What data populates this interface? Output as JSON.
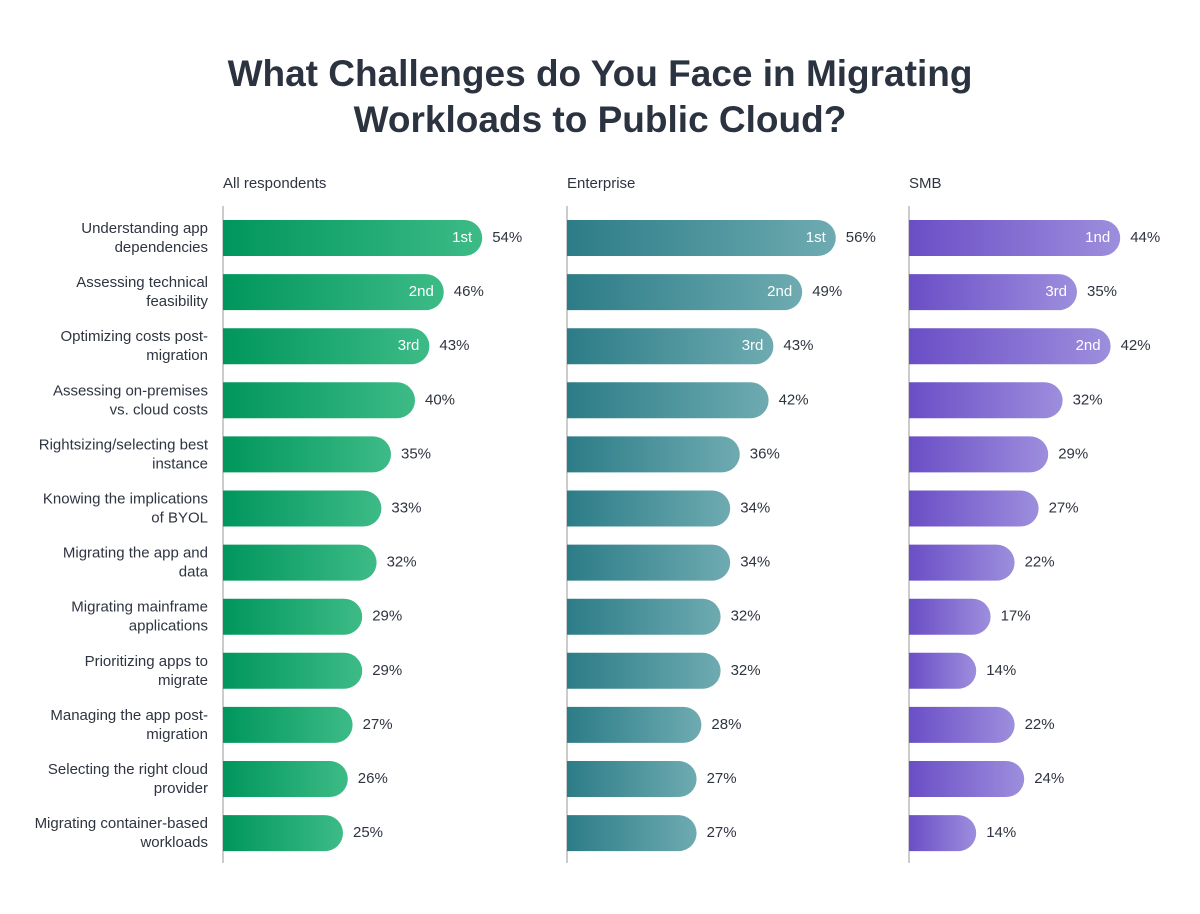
{
  "title": [
    "What Challenges do You Face in Migrating",
    "Workloads to Public Cloud?"
  ],
  "chart_data": [
    {
      "type": "bar",
      "orientation": "horizontal",
      "title": "All respondents",
      "categories": [
        [
          "Understanding app",
          "dependencies"
        ],
        [
          "Assessing technical",
          "feasibility"
        ],
        [
          "Optimizing costs post-",
          "migration"
        ],
        [
          "Assessing on-premises",
          "vs. cloud costs"
        ],
        [
          "Rightsizing/selecting best",
          "instance"
        ],
        [
          "Knowing the implications",
          "of BYOL"
        ],
        [
          "Migrating the app and",
          "data"
        ],
        [
          "Migrating mainframe",
          "applications"
        ],
        [
          "Prioritizing apps to",
          "migrate"
        ],
        [
          "Managing the app post-",
          "migration"
        ],
        [
          "Selecting the right cloud",
          "provider"
        ],
        [
          "Migrating container-based",
          "workloads"
        ]
      ],
      "values": [
        54,
        46,
        43,
        40,
        35,
        33,
        32,
        29,
        29,
        27,
        26,
        25
      ],
      "value_labels": [
        "54%",
        "46%",
        "43%",
        "40%",
        "35%",
        "33%",
        "32%",
        "29%",
        "29%",
        "27%",
        "26%",
        "25%"
      ],
      "rank_labels": [
        "1st",
        "2nd",
        "3rd",
        null,
        null,
        null,
        null,
        null,
        null,
        null,
        null,
        null
      ],
      "color": [
        "#00965c",
        "#3dbb87"
      ]
    },
    {
      "type": "bar",
      "orientation": "horizontal",
      "title": "Enterprise",
      "values": [
        56,
        49,
        43,
        42,
        36,
        34,
        34,
        32,
        32,
        28,
        27,
        27
      ],
      "value_labels": [
        "56%",
        "49%",
        "43%",
        "42%",
        "36%",
        "34%",
        "34%",
        "32%",
        "32%",
        "28%",
        "27%",
        "27%"
      ],
      "rank_labels": [
        "1st",
        "2nd",
        "3rd",
        null,
        null,
        null,
        null,
        null,
        null,
        null,
        null,
        null
      ],
      "color": [
        "#2c7c87",
        "#6eabb1"
      ]
    },
    {
      "type": "bar",
      "orientation": "horizontal",
      "title": "SMB",
      "values": [
        44,
        35,
        42,
        32,
        29,
        27,
        22,
        17,
        14,
        22,
        24,
        14
      ],
      "value_labels": [
        "44%",
        "35%",
        "42%",
        "32%",
        "29%",
        "27%",
        "22%",
        "17%",
        "14%",
        "22%",
        "24%",
        "14%"
      ],
      "rank_labels": [
        "1nd",
        "3rd",
        "2nd",
        null,
        null,
        null,
        null,
        null,
        null,
        null,
        null,
        null
      ],
      "color": [
        "#6a4ec6",
        "#9d8edd"
      ]
    }
  ]
}
